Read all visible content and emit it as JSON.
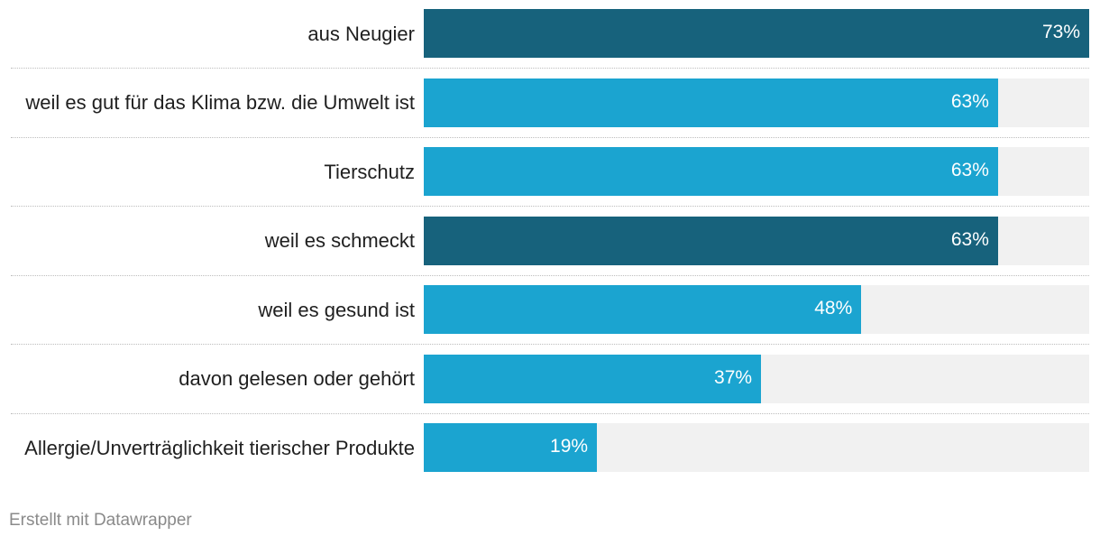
{
  "chart_data": {
    "type": "bar",
    "orientation": "horizontal",
    "categories": [
      "aus Neugier",
      "weil es gut für das Klima bzw. die Umwelt ist",
      "Tierschutz",
      "weil es schmeckt",
      "weil es gesund ist",
      "davon gelesen oder gehört",
      "Allergie/Unverträglichkeit tierischer Produkte"
    ],
    "values": [
      73,
      63,
      63,
      63,
      48,
      37,
      19
    ],
    "value_labels": [
      "73%",
      "63%",
      "63%",
      "63%",
      "48%",
      "37%",
      "19%"
    ],
    "highlighted": [
      true,
      false,
      false,
      true,
      false,
      false,
      false
    ],
    "xlim": [
      0,
      73
    ],
    "unit": "%",
    "colors": {
      "highlight": "#17627c",
      "default": "#1ba4d0",
      "background": "#f1f1f1"
    }
  },
  "footer": {
    "credit": "Erstellt mit Datawrapper"
  }
}
